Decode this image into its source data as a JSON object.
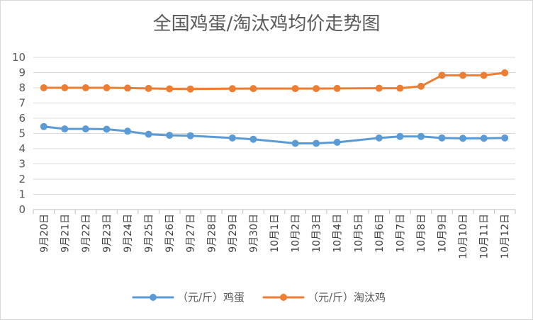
{
  "chart_data": {
    "type": "line",
    "title": "全国鸡蛋/淘汰鸡均价走势图",
    "xlabel": "",
    "ylabel": "",
    "ylim": [
      0,
      10
    ],
    "y_ticks": [
      0,
      1,
      2,
      3,
      4,
      5,
      6,
      7,
      8,
      9,
      10
    ],
    "grid": true,
    "legend_position": "bottom",
    "categories": [
      "9月20日",
      "9月21日",
      "9月22日",
      "9月23日",
      "9月24日",
      "9月25日",
      "9月26日",
      "9月27日",
      "9月28日",
      "9月29日",
      "9月30日",
      "10月1日",
      "10月2日",
      "10月3日",
      "10月4日",
      "10月5日",
      "10月6日",
      "10月7日",
      "10月8日",
      "10月9日",
      "10月10日",
      "10月11日",
      "10月12日"
    ],
    "series": [
      {
        "name": "（元/斤）鸡蛋",
        "color": "#5b9bd5",
        "values": [
          5.45,
          5.3,
          5.3,
          5.28,
          5.15,
          4.95,
          4.88,
          4.85,
          null,
          4.7,
          4.62,
          null,
          4.35,
          4.35,
          4.42,
          null,
          4.7,
          4.8,
          4.8,
          4.7,
          4.68,
          4.68,
          4.7
        ]
      },
      {
        "name": "（元/斤）淘汰鸡",
        "color": "#ed7d31",
        "values": [
          8.0,
          8.0,
          8.0,
          8.0,
          7.98,
          7.96,
          7.93,
          7.92,
          null,
          7.94,
          7.95,
          null,
          7.95,
          7.95,
          7.96,
          null,
          7.97,
          7.97,
          8.1,
          8.82,
          8.82,
          8.82,
          8.98
        ]
      }
    ]
  }
}
